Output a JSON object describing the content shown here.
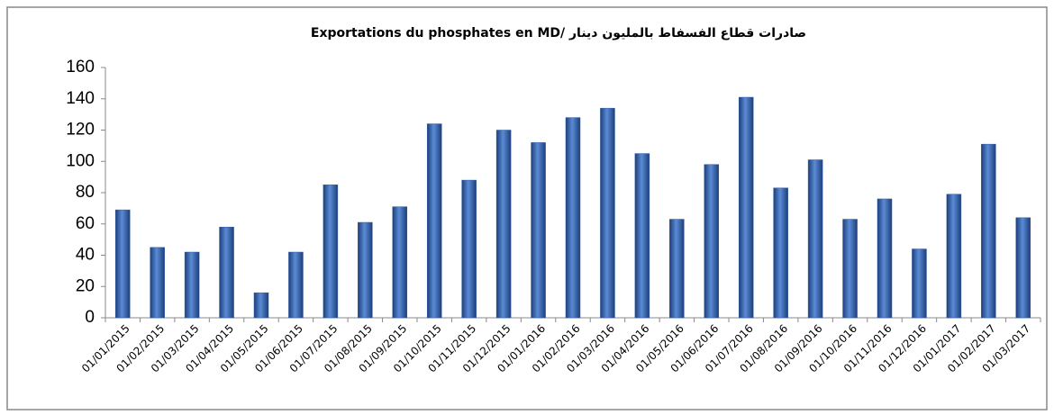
{
  "chart_data": {
    "type": "bar",
    "title": "Exportations du phosphates en MD/ صادرات قطاع الفسفاط بالمليون دينار",
    "categories": [
      "01/01/2015",
      "01/02/2015",
      "01/03/2015",
      "01/04/2015",
      "01/05/2015",
      "01/06/2015",
      "01/07/2015",
      "01/08/2015",
      "01/09/2015",
      "01/10/2015",
      "01/11/2015",
      "01/12/2015",
      "01/01/2016",
      "01/02/2016",
      "01/03/2016",
      "01/04/2016",
      "01/05/2016",
      "01/06/2016",
      "01/07/2016",
      "01/08/2016",
      "01/09/2016",
      "01/10/2016",
      "01/11/2016",
      "01/12/2016",
      "01/01/2017",
      "01/02/2017",
      "01/03/2017"
    ],
    "values": [
      69,
      45,
      42,
      58,
      16,
      42,
      85,
      61,
      71,
      124,
      88,
      120,
      112,
      128,
      134,
      105,
      63,
      98,
      141,
      83,
      101,
      63,
      76,
      44,
      79,
      111,
      64
    ],
    "color": "#2f5aa3",
    "ylim": [
      0,
      160
    ],
    "yticks": [
      0,
      20,
      40,
      60,
      80,
      100,
      120,
      140,
      160
    ],
    "grid": false
  }
}
